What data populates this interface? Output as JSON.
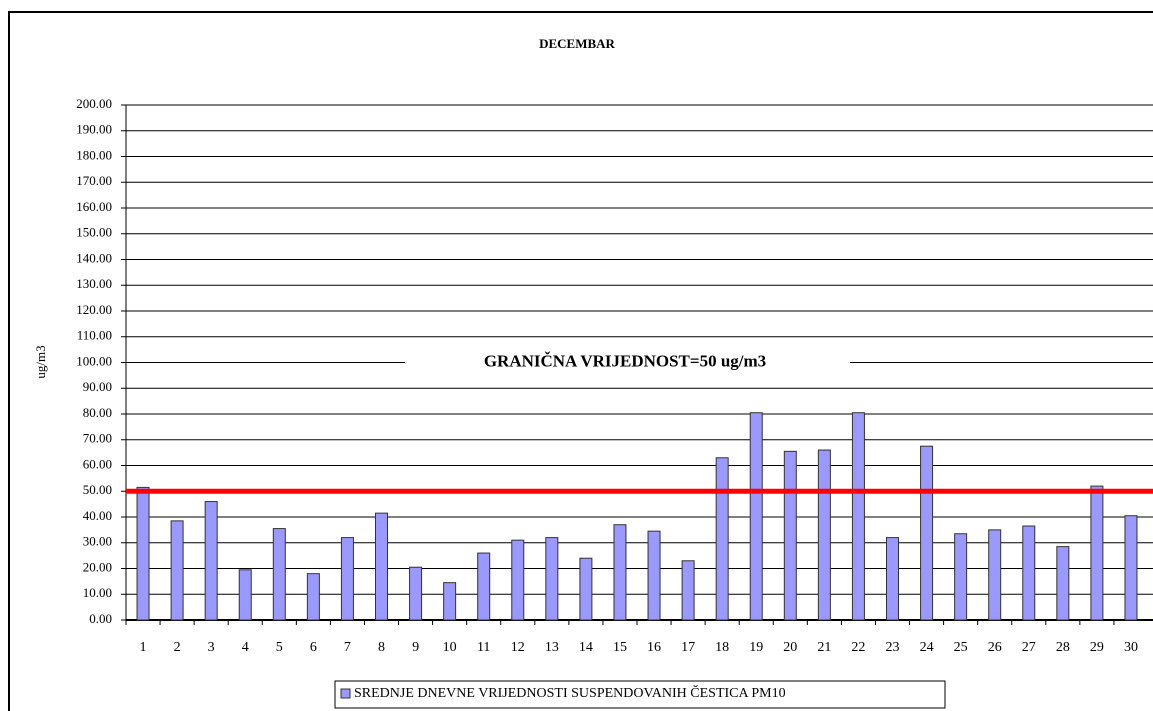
{
  "chart_data": {
    "type": "bar",
    "title": "DECEMBAR",
    "y_label": "ug/m3",
    "categories": [
      "1",
      "2",
      "3",
      "4",
      "5",
      "6",
      "7",
      "8",
      "9",
      "10",
      "11",
      "12",
      "13",
      "14",
      "15",
      "16",
      "17",
      "18",
      "19",
      "20",
      "21",
      "22",
      "23",
      "24",
      "25",
      "26",
      "27",
      "28",
      "29",
      "30"
    ],
    "series": [
      {
        "name": "SREDNJE DNEVNE VRIJEDNOSTI SUSPENDOVANIH ČESTICA PM10",
        "color": "#9999ff",
        "values": [
          51.5,
          38.5,
          46,
          19.5,
          35.5,
          18,
          32,
          41.5,
          20.5,
          14.5,
          26,
          31,
          32,
          24,
          37,
          34.5,
          23,
          63,
          80.5,
          65.5,
          66,
          80.5,
          32,
          67.5,
          33.5,
          35,
          36.5,
          28.5,
          52,
          40.5
        ]
      }
    ],
    "ylim": [
      0,
      200
    ],
    "yticks": [
      {
        "value": 0,
        "label": "0.00"
      },
      {
        "value": 10,
        "label": "10.00"
      },
      {
        "value": 20,
        "label": "20.00"
      },
      {
        "value": 30,
        "label": "30.00"
      },
      {
        "value": 40,
        "label": "40.00"
      },
      {
        "value": 50,
        "label": "50.00"
      },
      {
        "value": 60,
        "label": "60.00"
      },
      {
        "value": 70,
        "label": "70.00"
      },
      {
        "value": 80,
        "label": "80.00"
      },
      {
        "value": 90,
        "label": "90.00"
      },
      {
        "value": 100,
        "label": "100.00"
      },
      {
        "value": 110,
        "label": "110.00"
      },
      {
        "value": 120,
        "label": "120.00"
      },
      {
        "value": 130,
        "label": "130.00"
      },
      {
        "value": 140,
        "label": "140.00"
      },
      {
        "value": 150,
        "label": "150.00"
      },
      {
        "value": 160,
        "label": "160.00"
      },
      {
        "value": 170,
        "label": "170.00"
      },
      {
        "value": 180,
        "label": "180.00"
      },
      {
        "value": 190,
        "label": "190.00"
      },
      {
        "value": 200,
        "label": "200.00"
      }
    ],
    "grid": true,
    "threshold": {
      "value": 50,
      "color": "#ff0000",
      "label": "GRANIČNA VRIJEDNOST=50 ug/m3",
      "label_at": 100
    },
    "legend": "bottom"
  }
}
